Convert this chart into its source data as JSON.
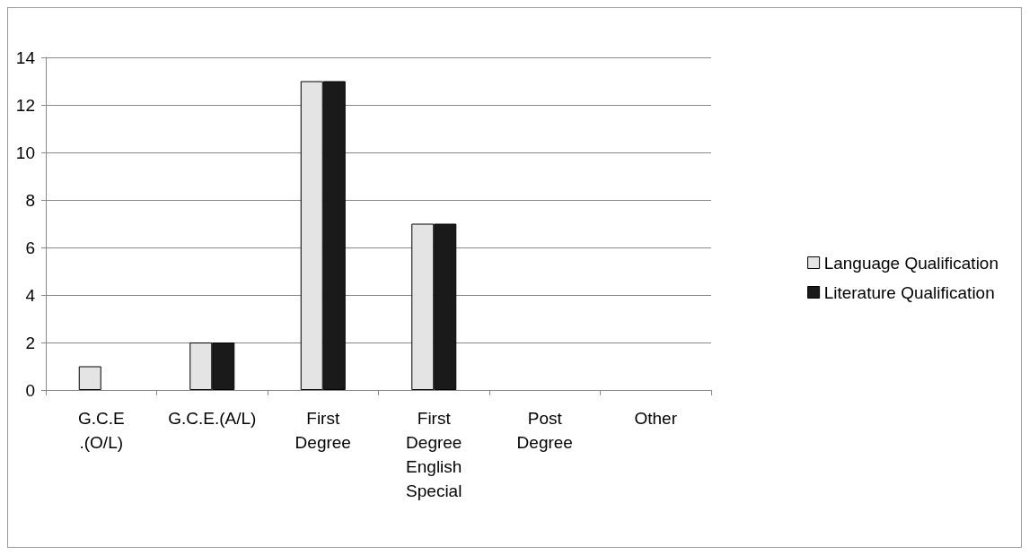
{
  "chart_data": {
    "type": "bar",
    "categories": [
      "G.C.E .(O/L)",
      "G.C.E.(A/L)",
      "First Degree",
      "First Degree English Special",
      "Post Degree",
      "Other"
    ],
    "series": [
      {
        "name": "Language Qualification",
        "color": "#e4e4e4",
        "values": [
          1,
          2,
          13,
          7,
          0,
          0
        ]
      },
      {
        "name": "Literature Qualification",
        "color": "#1a1a1a",
        "values": [
          0,
          2,
          13,
          7,
          0,
          0
        ]
      }
    ],
    "ylim": [
      0,
      14
    ],
    "yticks": [
      0,
      2,
      4,
      6,
      8,
      10,
      12,
      14
    ],
    "grid": "y",
    "legend": "right"
  }
}
